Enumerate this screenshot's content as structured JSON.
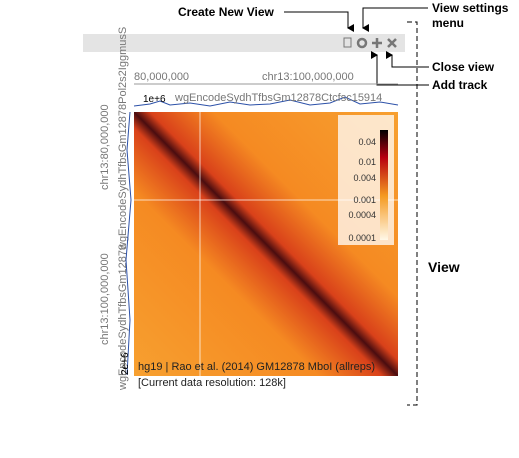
{
  "annotations": {
    "create_new_view": "Create New View",
    "view_settings": [
      "View settings",
      "menu"
    ],
    "close_view": "Close view",
    "add_track": "Add track",
    "view": "View"
  },
  "top_track": {
    "ticks": [
      "80,000,000",
      "chr13:100,000,000"
    ],
    "scale_label": "1e+6",
    "track_name": "wgEncodeSydhTfbsGm12878Ctcfsc15914"
  },
  "left_track": {
    "ticks": [
      "chr13:80,000,000",
      "chr13:100,000,000"
    ],
    "scale_label": "2e+6",
    "track_names": [
      "wgEncodeSydhTfbsGm12878Pol2s2IggmusS",
      "wgEncodeSydhTfbsGm12878"
    ]
  },
  "legend": {
    "ticks": [
      "0.04",
      "0.01",
      "0.004",
      "0.001",
      "0.0004",
      "0.0001"
    ]
  },
  "heatmap": {
    "info": [
      "hg19 | Rao et al. (2014) GM12878 MboI (allreps)",
      "[Current data resolution: 128k]"
    ]
  }
}
